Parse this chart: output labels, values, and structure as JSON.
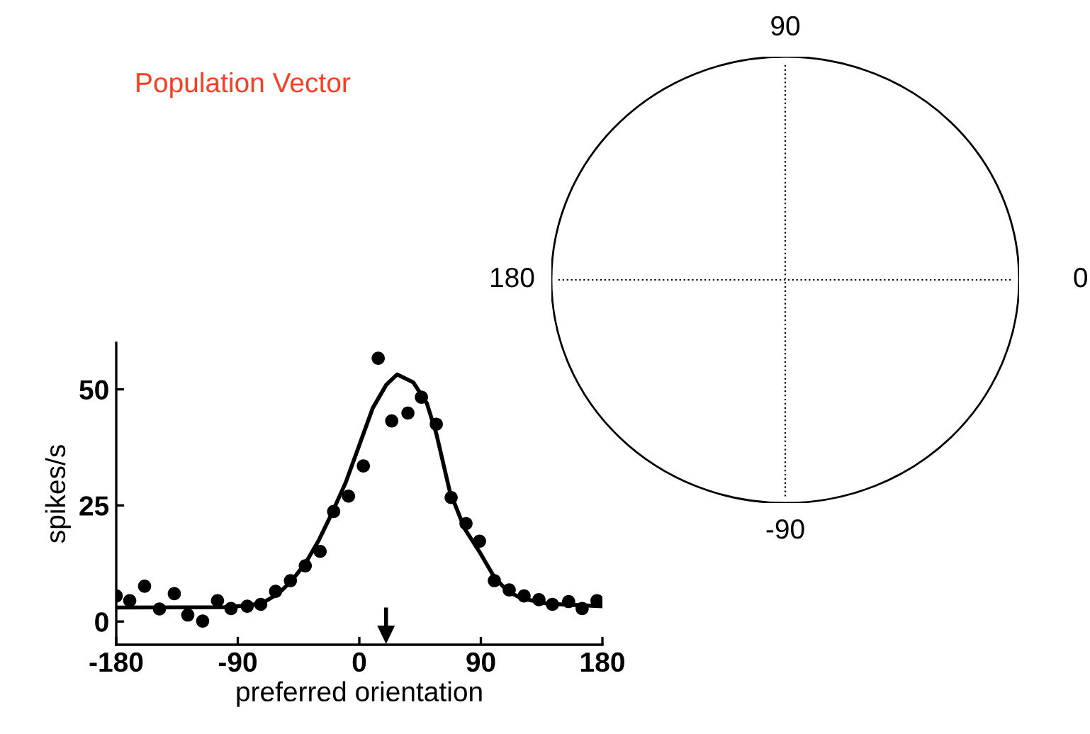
{
  "chart_data": [
    {
      "type": "scatter",
      "xlabel": "preferred orientation",
      "ylabel": "spikes/s",
      "xlim": [
        -180,
        180
      ],
      "ylim": [
        -5,
        60
      ],
      "xticks": [
        -180,
        -90,
        0,
        90,
        180
      ],
      "yticks": [
        0,
        25,
        50
      ],
      "grid": false,
      "marker": "circle",
      "series": [
        {
          "type": "scatter",
          "color": "#000000",
          "x": [
            -180,
            -170,
            -159,
            -148,
            -137,
            -127,
            -116,
            -105,
            -95,
            -83,
            -73,
            -62,
            -51,
            -40,
            -29,
            -19,
            -8,
            3,
            14,
            24,
            36,
            46,
            57,
            68,
            79,
            89,
            100,
            111,
            122,
            133,
            143,
            155,
            165,
            176
          ],
          "values": [
            5.5,
            4.5,
            7.6,
            2.7,
            6.0,
            1.4,
            0.1,
            4.5,
            2.8,
            3.3,
            3.7,
            6.5,
            8.8,
            12.0,
            15.1,
            23.7,
            27.0,
            33.5,
            56.7,
            43.2,
            44.9,
            48.3,
            42.5,
            26.7,
            21.1,
            17.3,
            8.8,
            6.8,
            5.5,
            4.7,
            3.7,
            4.3,
            2.8,
            4.5
          ]
        },
        {
          "type": "line",
          "color": "#000000",
          "line_style": "solid",
          "marker": "none",
          "x": [
            -180,
            -100,
            -80,
            -70,
            -60,
            -50,
            -40,
            -30,
            -20,
            -10,
            0,
            10,
            20,
            28,
            40,
            50,
            57,
            67,
            78,
            89,
            100,
            110,
            120,
            140,
            180
          ],
          "values": [
            3,
            3.1,
            3.5,
            4.3,
            6,
            8.8,
            12.5,
            17.5,
            23.5,
            30,
            38,
            46,
            51,
            53.2,
            51.5,
            47,
            40.5,
            28,
            20,
            15,
            9.5,
            6.5,
            5,
            3.8,
            3.3
          ]
        }
      ]
    },
    {
      "type": "other",
      "title": "Population Vector",
      "annotations": [
        "90",
        "0",
        "-90",
        "180"
      ]
    }
  ]
}
